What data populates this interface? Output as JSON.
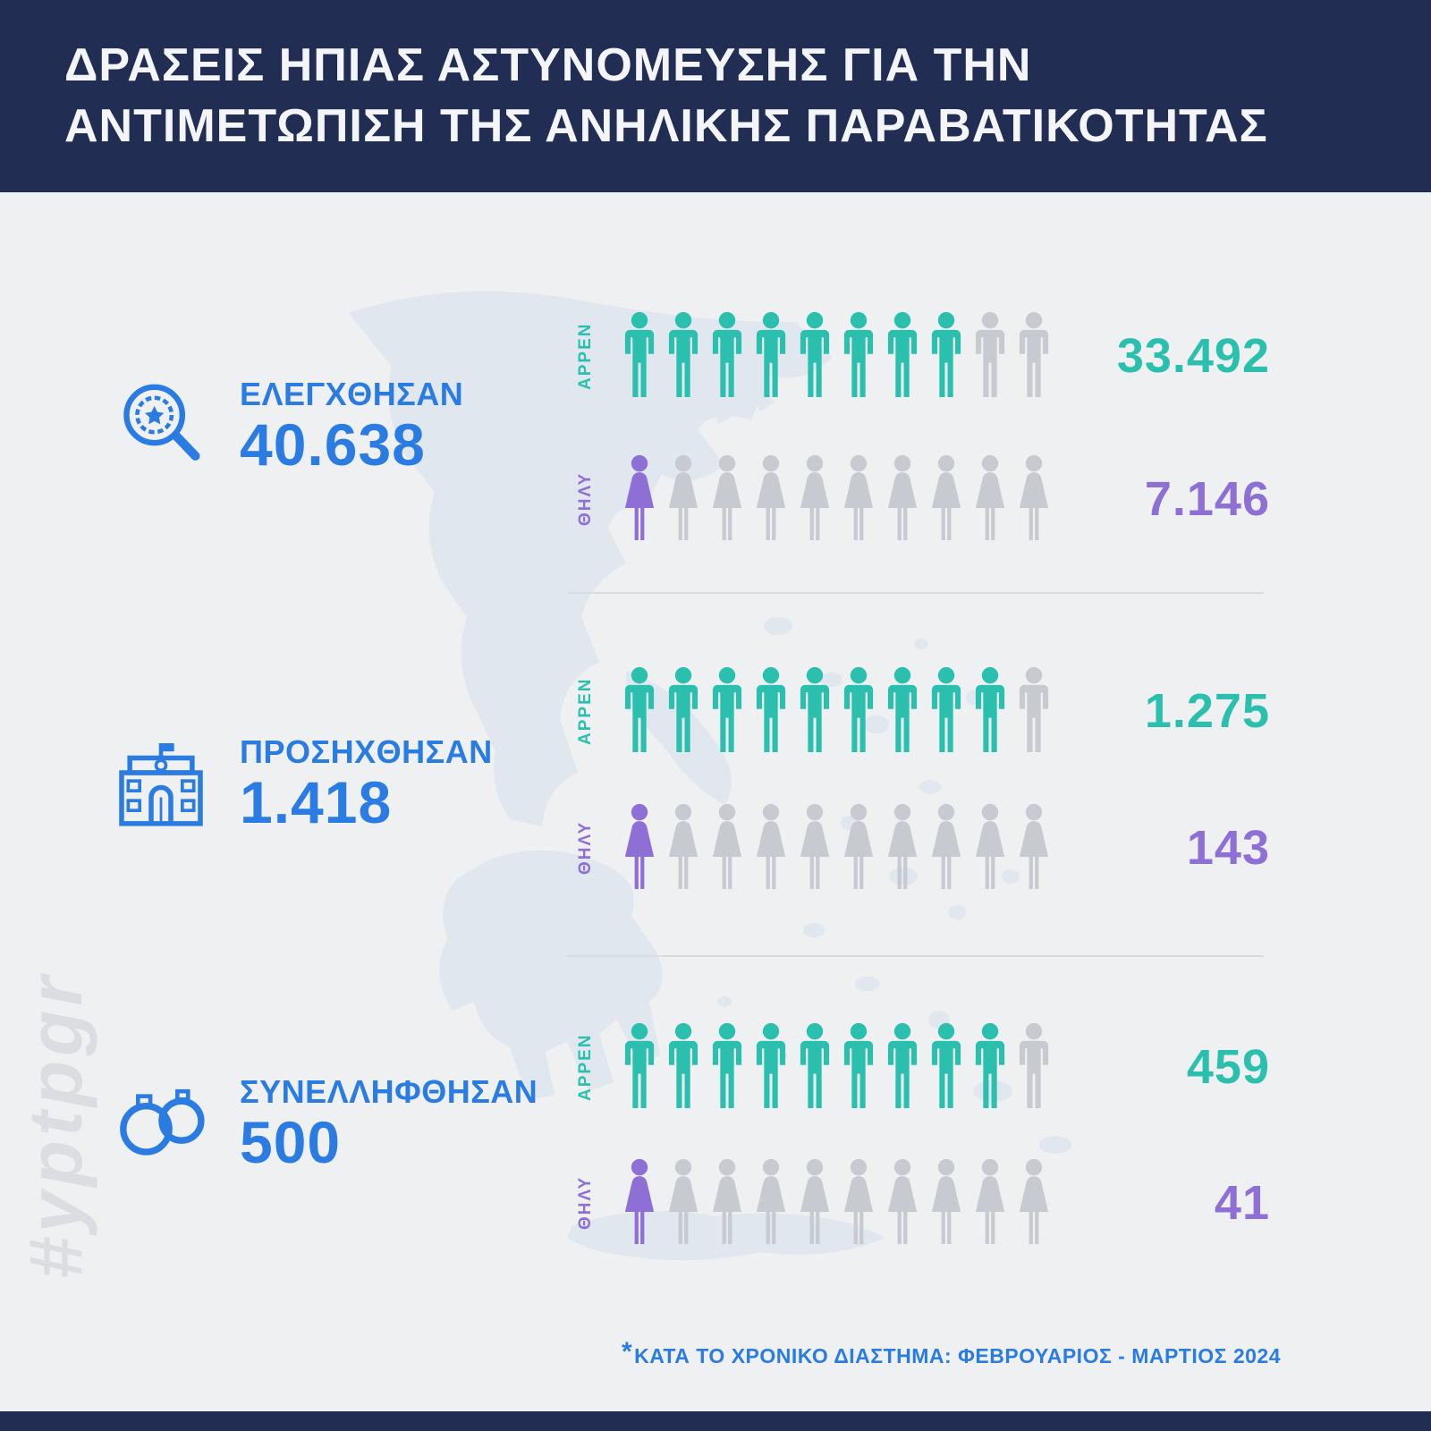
{
  "header": {
    "title_line1": "ΔΡΑΣΕΙΣ ΗΠΙΑΣ ΑΣΤΥΝΟΜΕΥΣΗΣ ΓΙΑ ΤΗΝ",
    "title_line2": "ΑΝΤΙΜΕΤΩΠΙΣΗ ΤΗΣ ΑΝΗΛΙΚΗΣ ΠΑΡΑΒΑΤΙΚΟΤΗΤΑΣ"
  },
  "watermark": "#yptpgr",
  "footnote": {
    "marker": "*",
    "text": "ΚΑΤΑ ΤΟ ΧΡΟΝΙΚΟ ΔΙΑΣΤΗΜΑ: ΦΕΒΡΟΥΑΡΙΟΣ - ΜΑΡΤΙΟΣ 2024"
  },
  "colors": {
    "navy": "#212d52",
    "accent_blue": "#2a7ce2",
    "teal": "#2bc0ae",
    "purple": "#8d6fd6",
    "icon_gray": "#c7cbd1",
    "background": "#eef0f2",
    "divider": "#d8dbdf"
  },
  "chart_data": {
    "type": "pictogram",
    "title": "ΔΡΑΣΕΙΣ ΗΠΙΑΣ ΑΣΤΥΝΟΜΕΥΣΗΣ ΓΙΑ ΤΗΝ ΑΝΤΙΜΕΤΩΠΙΣΗ ΤΗΣ ΑΝΗΛΙΚΗΣ ΠΑΡΑΒΑΤΙΚΟΤΗΤΑΣ",
    "period_note": "ΚΑΤΑ ΤΟ ΧΡΟΝΙΚΟ ΔΙΑΣΤΗΜΑ: ΦΕΒΡΟΥΑΡΙΟΣ - ΜΑΡΤΙΟΣ 2024",
    "legend": [
      "ΑΡΡΕΝ",
      "ΘΗΛΥ"
    ],
    "sections": [
      {
        "id": "elegxthisan",
        "icon": "magnifier-badge-icon",
        "label": "ΕΛΕΓΧΘΗΣΑΝ",
        "total": "40.638",
        "total_num": 40638,
        "rows": [
          {
            "gender": "ΑΡΡΕΝ",
            "sex": "male",
            "value": "33.492",
            "value_num": 33492,
            "icons_total": 10,
            "icons_filled": 8,
            "color": "#2bc0ae"
          },
          {
            "gender": "ΘΗΛΥ",
            "sex": "female",
            "value": "7.146",
            "value_num": 7146,
            "icons_total": 10,
            "icons_filled": 1,
            "color": "#8d6fd6"
          }
        ]
      },
      {
        "id": "prosixthisan",
        "icon": "police-station-icon",
        "label": "ΠΡΟΣΗΧΘΗΣΑΝ",
        "total": "1.418",
        "total_num": 1418,
        "rows": [
          {
            "gender": "ΑΡΡΕΝ",
            "sex": "male",
            "value": "1.275",
            "value_num": 1275,
            "icons_total": 10,
            "icons_filled": 9,
            "color": "#2bc0ae"
          },
          {
            "gender": "ΘΗΛΥ",
            "sex": "female",
            "value": "143",
            "value_num": 143,
            "icons_total": 10,
            "icons_filled": 1,
            "color": "#8d6fd6"
          }
        ]
      },
      {
        "id": "synellifthisan",
        "icon": "handcuffs-icon",
        "label": "ΣΥΝΕΛΛΗΦΘΗΣΑΝ",
        "total": "500",
        "total_num": 500,
        "rows": [
          {
            "gender": "ΑΡΡΕΝ",
            "sex": "male",
            "value": "459",
            "value_num": 459,
            "icons_total": 10,
            "icons_filled": 9,
            "color": "#2bc0ae"
          },
          {
            "gender": "ΘΗΛΥ",
            "sex": "female",
            "value": "41",
            "value_num": 41,
            "icons_total": 10,
            "icons_filled": 1,
            "color": "#8d6fd6"
          }
        ]
      }
    ]
  }
}
